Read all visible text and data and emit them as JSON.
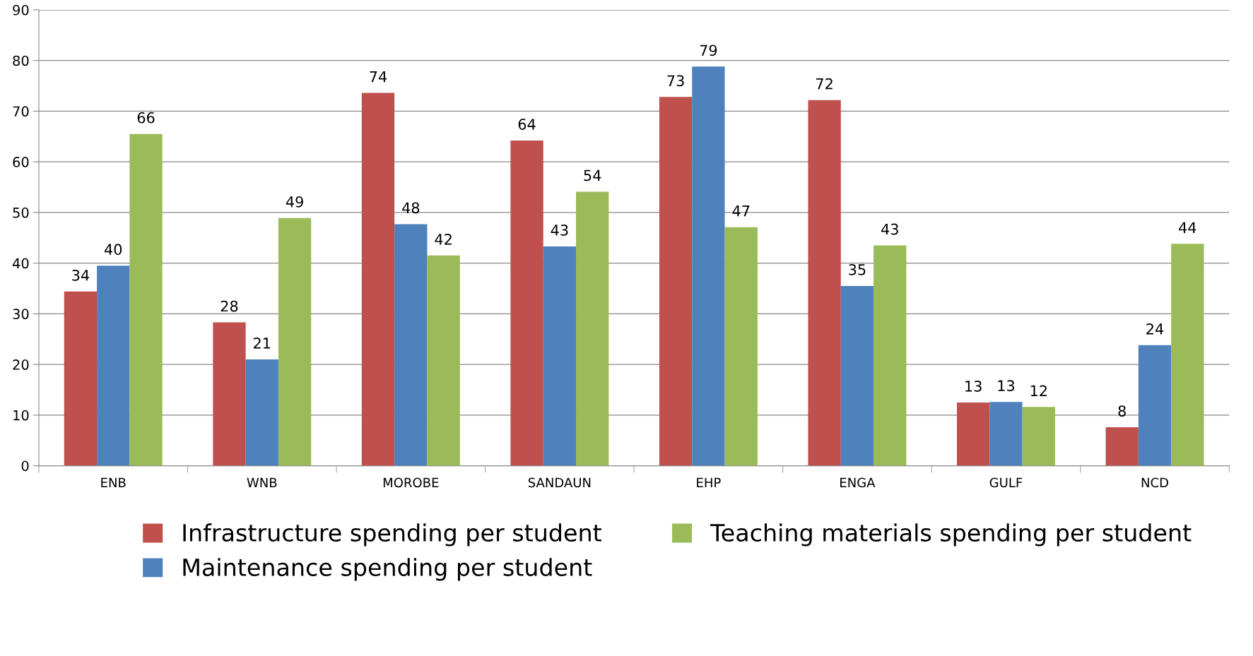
{
  "chart_data": {
    "type": "bar",
    "categories": [
      "ENB",
      "WNB",
      "MOROBE",
      "SANDAUN",
      "EHP",
      "ENGA",
      "GULF",
      "NCD"
    ],
    "series": [
      {
        "name": "Infrastructure spending per student",
        "color": "#c0504d",
        "values": [
          34.4,
          28.3,
          73.6,
          64.2,
          72.8,
          72.2,
          12.5,
          7.6
        ],
        "value_labels": [
          "34",
          "28",
          "74",
          "64",
          "73",
          "72",
          "13",
          "8"
        ]
      },
      {
        "name": "Maintenance spending per student",
        "color": "#4f81bd",
        "values": [
          39.5,
          21.0,
          47.7,
          43.3,
          78.8,
          35.5,
          12.6,
          23.8
        ],
        "value_labels": [
          "40",
          "21",
          "48",
          "43",
          "79",
          "35",
          "13",
          "24"
        ]
      },
      {
        "name": "Teaching materials spending per student",
        "color": "#9bbb59",
        "values": [
          65.5,
          48.9,
          41.5,
          54.1,
          47.1,
          43.5,
          11.6,
          43.8
        ],
        "value_labels": [
          "66",
          "49",
          "42",
          "54",
          "47",
          "43",
          "12",
          "44"
        ]
      }
    ],
    "ylim": [
      0,
      90
    ],
    "yticks": [
      0,
      10,
      20,
      30,
      40,
      50,
      60,
      70,
      80,
      90
    ],
    "grid": "y",
    "legend": "bottom"
  }
}
